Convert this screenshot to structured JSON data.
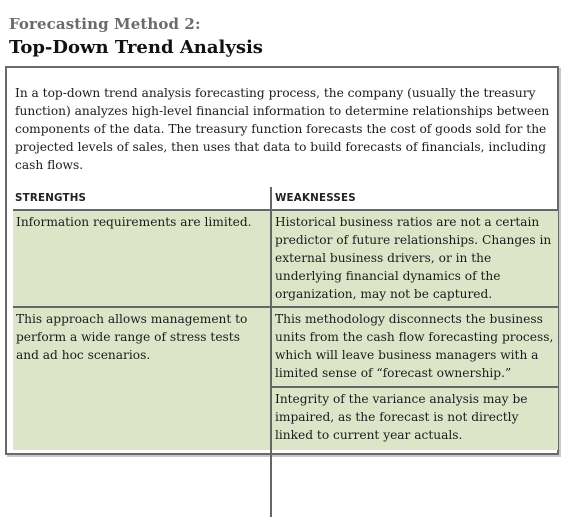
{
  "header": {
    "kicker": "Forecasting Method 2:",
    "title": "Top-Down Trend Analysis"
  },
  "intro": "In a top-down trend analysis forecasting process, the company (usually the treasury function) analyzes high-level financial information to determine relationships between components of the data. The treasury function forecasts the cost of goods sold for the projected levels of sales, then uses that data to build forecasts of financials, including cash flows.",
  "table": {
    "headers": {
      "strengths": "STRENGTHS",
      "weaknesses": "WEAKNESSES"
    },
    "strengths": [
      "Information requirements are limited.",
      "This approach allows management to perform a wide range of stress tests and ad hoc scenarios."
    ],
    "weaknesses": [
      "Historical business ratios are not a certain predictor of future relationships. Changes in external business drivers, or in the underlying financial dynamics of the organization, may not be captured.",
      "This methodology disconnects the business units from the cash flow forecasting process, which will leave business managers with a limited sense of “forecast ownership.”",
      "Integrity of the variance analysis may be impaired, as the forecast is not directly linked to current year actuals."
    ]
  }
}
